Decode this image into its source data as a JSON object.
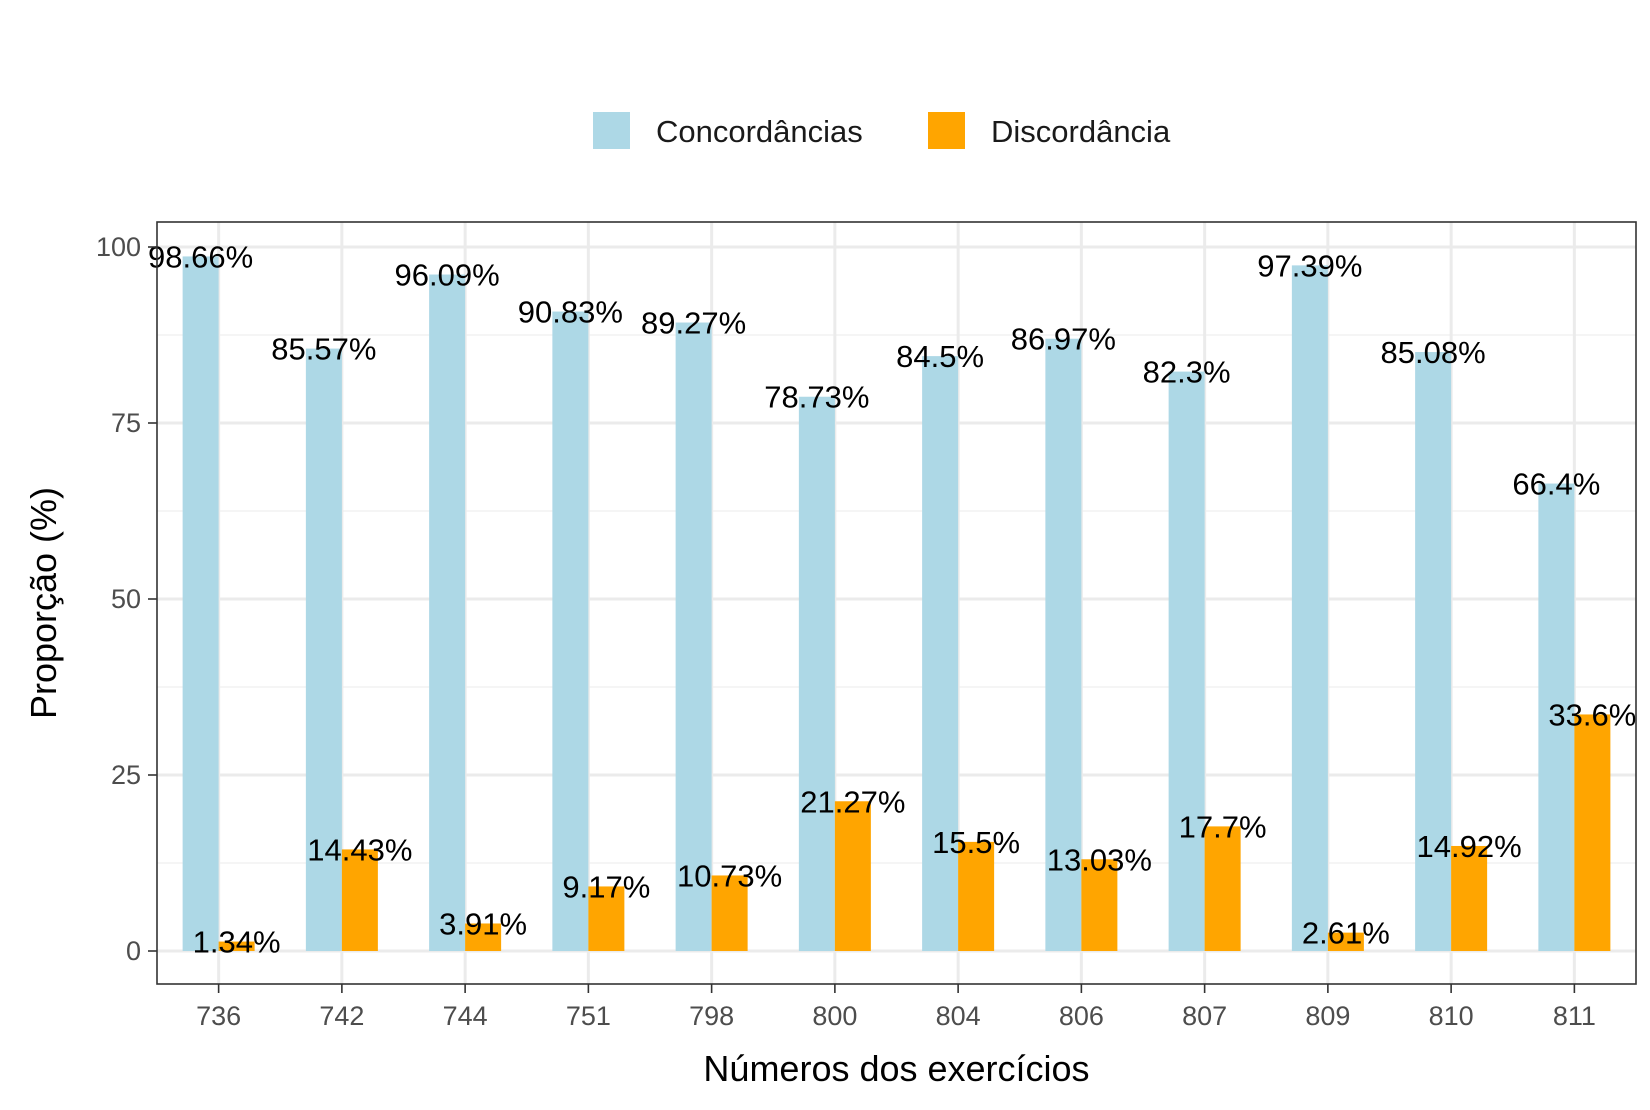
{
  "chart_data": {
    "type": "bar",
    "title": "",
    "xlabel": "Números dos exercícios",
    "ylabel": "Proporção (%)",
    "ylim": [
      -5,
      103
    ],
    "yticks": [
      "0",
      "25",
      "50",
      "75",
      "100"
    ],
    "grid": true,
    "legend_position": "top",
    "categories": [
      "736",
      "742",
      "744",
      "751",
      "798",
      "800",
      "804",
      "806",
      "807",
      "809",
      "810",
      "811"
    ],
    "series": [
      {
        "name": "Concordâncias",
        "color": "#add8e6",
        "values": [
          98.66,
          85.57,
          96.09,
          90.83,
          89.27,
          78.73,
          84.5,
          86.97,
          82.3,
          97.39,
          85.08,
          66.4
        ],
        "labels": [
          "98.66%",
          "85.57%",
          "96.09%",
          "90.83%",
          "89.27%",
          "78.73%",
          "84.5%",
          "86.97%",
          "82.3%",
          "97.39%",
          "85.08%",
          "66.4%"
        ]
      },
      {
        "name": "Discordância",
        "color": "#ffa500",
        "values": [
          1.34,
          14.43,
          3.91,
          9.17,
          10.73,
          21.27,
          15.5,
          13.03,
          17.7,
          2.61,
          14.92,
          33.6
        ],
        "labels": [
          "1.34%",
          "14.43%",
          "3.91%",
          "9.17%",
          "10.73%",
          "21.27%",
          "15.5%",
          "13.03%",
          "17.7%",
          "2.61%",
          "14.92%",
          "33.6%"
        ]
      }
    ]
  }
}
